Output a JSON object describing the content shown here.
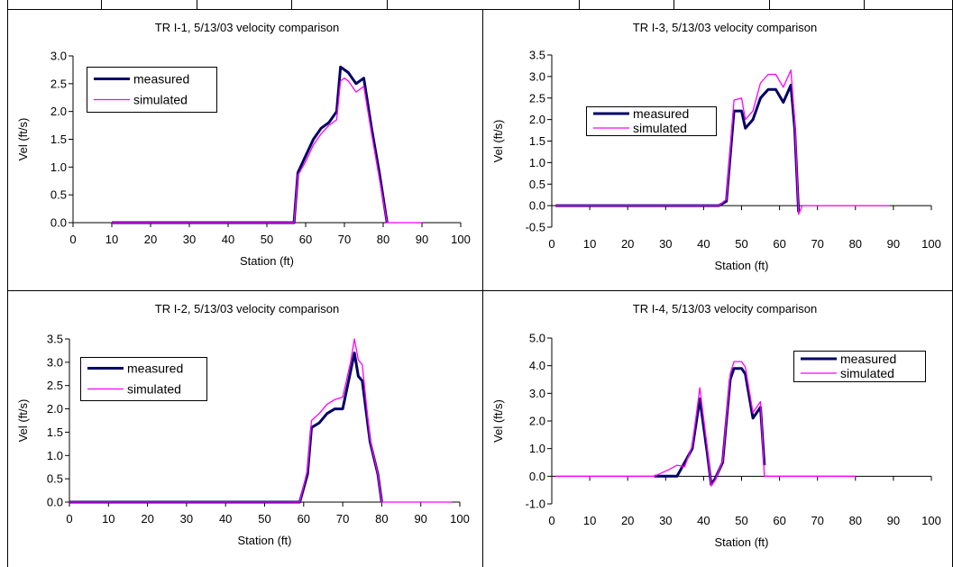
{
  "colors": {
    "measured": "#000066",
    "simulated": "#ff00ff",
    "grid_lines": "#000000",
    "background": "#ffffff"
  },
  "chart_data": [
    {
      "id": "tr-i-1",
      "type": "line",
      "title": "TR I-1,  5/13/03 velocity comparison",
      "xlabel": "Station (ft)",
      "ylabel": "Vel (ft/s)",
      "xlim": [
        0,
        100
      ],
      "ylim": [
        0,
        3.0
      ],
      "xticks": [
        "0",
        "10",
        "20",
        "30",
        "40",
        "50",
        "60",
        "70",
        "80",
        "90",
        "100"
      ],
      "yticks": [
        "0.0",
        "0.5",
        "1.0",
        "1.5",
        "2.0",
        "2.5",
        "3.0"
      ],
      "legend": "top-left",
      "series": [
        {
          "name": "measured",
          "color": "#000066",
          "width": 3,
          "x": [
            10,
            57,
            58,
            60,
            62,
            64,
            66,
            68,
            69,
            70,
            71,
            72,
            73,
            75,
            77,
            79,
            81
          ],
          "y": [
            0,
            0,
            0.9,
            1.2,
            1.5,
            1.7,
            1.8,
            2.0,
            2.8,
            2.75,
            2.7,
            2.6,
            2.5,
            2.6,
            1.7,
            0.9,
            0
          ]
        },
        {
          "name": "simulated",
          "color": "#ff00ff",
          "width": 1.3,
          "x": [
            10,
            57,
            58,
            60,
            62,
            64,
            66,
            68,
            69,
            70,
            71,
            72,
            73,
            75,
            77,
            79,
            81,
            90
          ],
          "y": [
            0,
            0,
            0.85,
            1.1,
            1.4,
            1.6,
            1.75,
            1.85,
            2.55,
            2.6,
            2.55,
            2.45,
            2.35,
            2.45,
            1.6,
            0.8,
            0,
            0
          ]
        }
      ]
    },
    {
      "id": "tr-i-3",
      "type": "line",
      "title": "TR I-3,  5/13/03 velocity comparison",
      "xlabel": "Station (ft)",
      "ylabel": "Vel (ft/s)",
      "xlim": [
        0,
        100
      ],
      "ylim": [
        -0.5,
        3.5
      ],
      "xticks": [
        "0",
        "10",
        "20",
        "30",
        "40",
        "50",
        "60",
        "70",
        "80",
        "90",
        "100"
      ],
      "yticks": [
        "-0.5",
        "0.0",
        "0.5",
        "1.0",
        "1.5",
        "2.0",
        "2.5",
        "3.0",
        "3.5"
      ],
      "legend": "center-left",
      "series": [
        {
          "name": "measured",
          "color": "#000066",
          "width": 3,
          "x": [
            1,
            44,
            46,
            48,
            50,
            51,
            53,
            55,
            57,
            59,
            61,
            63,
            64,
            65
          ],
          "y": [
            0,
            0,
            0.1,
            2.2,
            2.2,
            1.8,
            2.0,
            2.5,
            2.7,
            2.7,
            2.4,
            2.8,
            1.8,
            -0.15
          ]
        },
        {
          "name": "simulated",
          "color": "#ff00ff",
          "width": 1.3,
          "x": [
            1,
            44,
            46,
            48,
            50,
            51,
            53,
            55,
            57,
            59,
            61,
            63,
            64,
            65,
            66,
            89
          ],
          "y": [
            0,
            0,
            0.15,
            2.45,
            2.5,
            2.0,
            2.2,
            2.85,
            3.05,
            3.05,
            2.75,
            3.15,
            2.0,
            -0.2,
            0,
            0
          ]
        }
      ]
    },
    {
      "id": "tr-i-2",
      "type": "line",
      "title": "TR I-2,  5/13/03 velocity comparison",
      "xlabel": "Station (ft)",
      "ylabel": "Vel (ft/s)",
      "xlim": [
        0,
        100
      ],
      "ylim": [
        0,
        3.5
      ],
      "xticks": [
        "0",
        "10",
        "20",
        "30",
        "40",
        "50",
        "60",
        "70",
        "80",
        "90",
        "100"
      ],
      "yticks": [
        "0.0",
        "0.5",
        "1.0",
        "1.5",
        "2.0",
        "2.5",
        "3.0",
        "3.5"
      ],
      "legend": "top-left",
      "series": [
        {
          "name": "measured",
          "color": "#000066",
          "width": 3,
          "x": [
            0,
            59,
            61,
            62,
            64,
            66,
            68,
            70,
            72,
            73,
            74,
            75,
            77,
            79,
            80
          ],
          "y": [
            0,
            0,
            0.6,
            1.6,
            1.7,
            1.9,
            2.0,
            2.0,
            2.8,
            3.2,
            2.7,
            2.6,
            1.3,
            0.6,
            0
          ]
        },
        {
          "name": "simulated",
          "color": "#ff00ff",
          "width": 1.3,
          "x": [
            0,
            59,
            61,
            62,
            64,
            66,
            68,
            70,
            72,
            73,
            74,
            75,
            77,
            79,
            80,
            98
          ],
          "y": [
            0,
            0,
            0.7,
            1.75,
            1.9,
            2.1,
            2.2,
            2.25,
            3.0,
            3.5,
            3.05,
            2.95,
            1.35,
            0.6,
            0,
            0
          ]
        }
      ]
    },
    {
      "id": "tr-i-4",
      "type": "line",
      "title": "TR I-4,  5/13/03 velocity comparison",
      "xlabel": "Station (ft)",
      "ylabel": "Vel (ft/s)",
      "xlim": [
        0,
        100
      ],
      "ylim": [
        -1.0,
        5.0
      ],
      "xticks": [
        "0",
        "10",
        "20",
        "30",
        "40",
        "50",
        "60",
        "70",
        "80",
        "90",
        "100"
      ],
      "yticks": [
        "-1.0",
        "0.0",
        "1.0",
        "2.0",
        "3.0",
        "4.0",
        "5.0"
      ],
      "legend": "top-right",
      "series": [
        {
          "name": "measured",
          "color": "#000066",
          "width": 3,
          "x": [
            27,
            31,
            33,
            35,
            37,
            39,
            41,
            42,
            43,
            45,
            47,
            48,
            50,
            51,
            53,
            55,
            56
          ],
          "y": [
            0,
            0,
            0,
            0.5,
            1.0,
            2.8,
            0.8,
            -0.3,
            -0.1,
            0.5,
            3.5,
            3.9,
            3.9,
            3.7,
            2.1,
            2.5,
            0.4
          ]
        },
        {
          "name": "simulated",
          "color": "#ff00ff",
          "width": 1.3,
          "x": [
            1,
            27,
            31,
            33,
            35,
            37,
            39,
            41,
            42,
            43,
            45,
            47,
            48,
            50,
            51,
            53,
            55,
            56,
            80
          ],
          "y": [
            0,
            0,
            0.25,
            0.4,
            0.35,
            1.1,
            3.2,
            1.0,
            -0.35,
            -0.15,
            0.55,
            3.7,
            4.15,
            4.15,
            3.95,
            2.3,
            2.7,
            0,
            0
          ]
        }
      ]
    }
  ]
}
